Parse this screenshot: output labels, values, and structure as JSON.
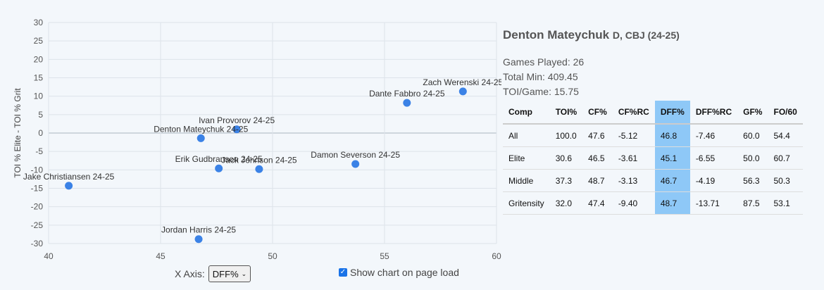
{
  "chart_data": {
    "type": "scatter",
    "xlabel": "",
    "ylabel": "TOI % Elite - TOI % Grit",
    "xlim": [
      40,
      60
    ],
    "ylim": [
      -30,
      30
    ],
    "xticks": [
      40,
      45,
      50,
      55,
      60
    ],
    "yticks": [
      30,
      25,
      20,
      15,
      10,
      5,
      0,
      -5,
      -10,
      -15,
      -20,
      -25,
      -30
    ],
    "grid": true,
    "point_color": "#3b82e6",
    "points": [
      {
        "label": "Zach Werenski 24-25",
        "x": 58.5,
        "y": 11.3
      },
      {
        "label": "Dante Fabbro 24-25",
        "x": 56.0,
        "y": 8.2
      },
      {
        "label": "Ivan Provorov 24-25",
        "x": 48.4,
        "y": 1.0
      },
      {
        "label": "Denton Mateychuk 24-25",
        "x": 46.8,
        "y": -1.4
      },
      {
        "label": "Erik Gudbranson 24-25",
        "x": 47.6,
        "y": -9.6
      },
      {
        "label": "Jack Johnson 24-25",
        "x": 49.4,
        "y": -9.8
      },
      {
        "label": "Damon Severson 24-25",
        "x": 53.7,
        "y": -8.4
      },
      {
        "label": "Jake Christiansen 24-25",
        "x": 40.9,
        "y": -14.3
      },
      {
        "label": "Jordan Harris 24-25",
        "x": 46.7,
        "y": -28.8
      }
    ]
  },
  "controls": {
    "x_axis_label": "X Axis:",
    "x_axis_value": "DFF%",
    "show_chart_label": "Show chart on page load"
  },
  "panel": {
    "name": "Denton Mateychuk",
    "sub": "D, CBJ (24-25)",
    "games_played": "Games Played: 26",
    "total_min": "Total Min: 409.45",
    "toi_game": "TOI/Game: 15.75"
  },
  "table": {
    "headers": [
      "Comp",
      "TOI%",
      "CF%",
      "CF%RC",
      "DFF%",
      "DFF%RC",
      "GF%",
      "FO/60"
    ],
    "highlight_col": 4,
    "rows": [
      [
        "All",
        "100.0",
        "47.6",
        "-5.12",
        "46.8",
        "-7.46",
        "60.0",
        "54.4"
      ],
      [
        "Elite",
        "30.6",
        "46.5",
        "-3.61",
        "45.1",
        "-6.55",
        "50.0",
        "60.7"
      ],
      [
        "Middle",
        "37.3",
        "48.7",
        "-3.13",
        "46.7",
        "-4.19",
        "56.3",
        "50.3"
      ],
      [
        "Gritensity",
        "32.0",
        "47.4",
        "-9.40",
        "48.7",
        "-13.71",
        "87.5",
        "53.1"
      ]
    ]
  }
}
